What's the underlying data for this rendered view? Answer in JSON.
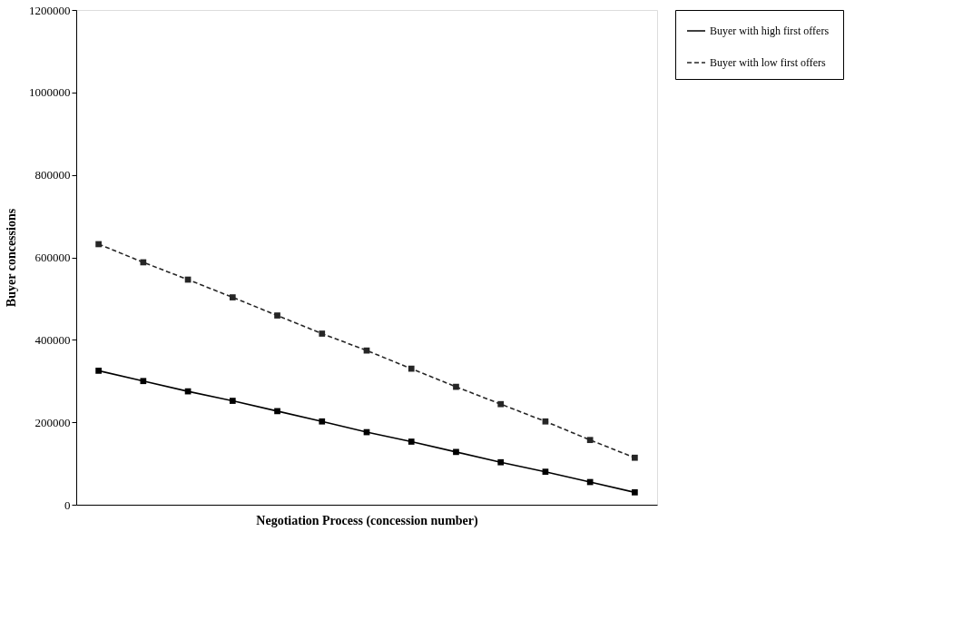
{
  "chart_data": {
    "type": "line",
    "xlabel": "Negotiation Process (concession number)",
    "ylabel": "Buyer concessions",
    "categories": [
      null,
      null,
      null,
      null,
      null,
      null,
      null,
      null,
      null,
      null,
      null,
      null,
      null
    ],
    "series": [
      {
        "name": "Buyer with high  first offers",
        "color": "#000000",
        "line_style": "solid",
        "values": [
          325000,
          300000,
          275000,
          252000,
          227000,
          202000,
          176000,
          153000,
          128000,
          103000,
          80000,
          55000,
          30000
        ]
      },
      {
        "name": "Buyer with low first offers",
        "color": "#262626",
        "line_style": "dashed",
        "values": [
          632000,
          588000,
          546000,
          503000,
          459000,
          415000,
          374000,
          330000,
          286000,
          244000,
          202000,
          157000,
          114000
        ]
      }
    ],
    "ylim": [
      0,
      1200000
    ],
    "yticks": [
      0,
      200000,
      400000,
      600000,
      800000,
      1000000,
      1200000
    ],
    "marker": "square",
    "grid": false,
    "legend": "right",
    "tick_labels": "y"
  }
}
